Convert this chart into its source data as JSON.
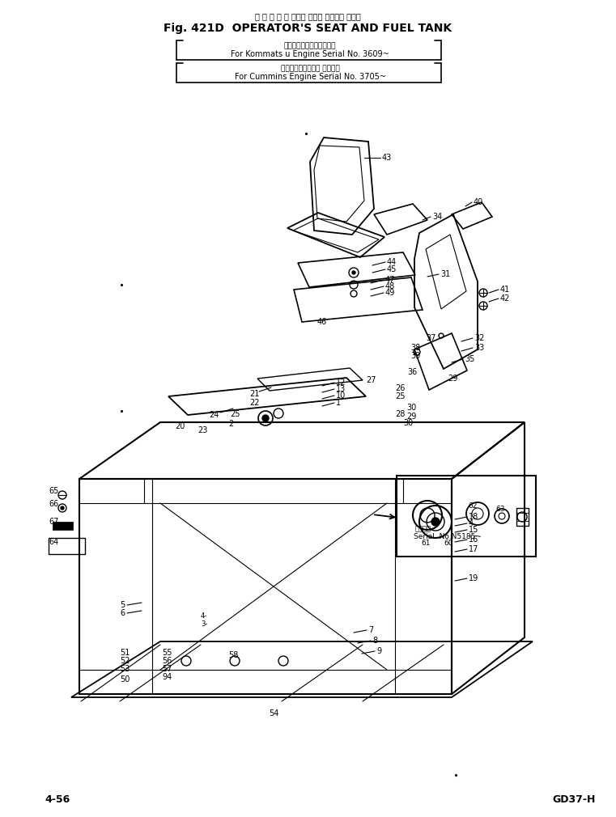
{
  "title_japanese": "オ ペ レ ー タ シート および フェエル タンク",
  "title_main": "Fig. 421D  OPERATOR'S SEAT AND FUEL TANK",
  "subtitle1_jp": "小松エンジン用　適用号機",
  "subtitle1_en": "For Kommats u Engine Serial No. 3609~",
  "subtitle2_jp": "カミンズエンジン用 適用号機",
  "subtitle2_en": "For Cummins Engine Serial No. 3705~",
  "page_number": "4-56",
  "model": "GD37-H",
  "bg_color": "#ffffff",
  "line_color": "#000000",
  "text_color": "#000000",
  "fig_width": 7.61,
  "fig_height": 10.1,
  "dpi": 100
}
